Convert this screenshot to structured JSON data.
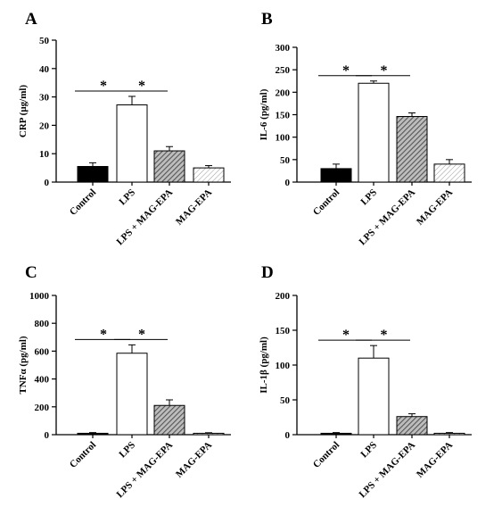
{
  "chart_data": [
    {
      "panel": "A",
      "type": "bar",
      "ylabel": "CRP (µg/ml)",
      "ylim": [
        0,
        50
      ],
      "yticks": [
        0,
        10,
        20,
        30,
        40,
        50
      ],
      "categories": [
        "Control",
        "LPS",
        "LPS + MAG-EPA",
        "MAG-EPA"
      ],
      "values": [
        5.5,
        27.2,
        11.0,
        5.0
      ],
      "errors": [
        1.3,
        3.0,
        1.5,
        0.8
      ],
      "fills": [
        "solid",
        "open",
        "dense-hatch",
        "light-hatch"
      ],
      "significance": [
        {
          "from": 0,
          "to": 1,
          "label": "*"
        },
        {
          "from": 1,
          "to": 2,
          "label": "*"
        }
      ]
    },
    {
      "panel": "B",
      "type": "bar",
      "ylabel": "IL-6 (pg/ml)",
      "ylim": [
        0,
        300
      ],
      "yticks": [
        0,
        50,
        100,
        150,
        200,
        250,
        300
      ],
      "categories": [
        "Control",
        "LPS",
        "LPS + MAG-EPA",
        "MAG-EPA"
      ],
      "values": [
        30,
        220,
        146,
        40
      ],
      "errors": [
        10,
        5,
        8,
        10
      ],
      "fills": [
        "solid",
        "open",
        "dense-hatch",
        "light-hatch"
      ],
      "significance": [
        {
          "from": 0,
          "to": 1,
          "label": "*"
        },
        {
          "from": 1,
          "to": 2,
          "label": "*"
        }
      ]
    },
    {
      "panel": "C",
      "type": "bar",
      "ylabel": "TNFα (pg/ml)",
      "ylim": [
        0,
        1000
      ],
      "yticks": [
        0,
        200,
        400,
        600,
        800,
        1000
      ],
      "categories": [
        "Control",
        "LPS",
        "LPS + MAG-EPA",
        "MAG-EPA"
      ],
      "values": [
        10,
        585,
        210,
        10
      ],
      "errors": [
        5,
        60,
        40,
        4
      ],
      "fills": [
        "solid",
        "open",
        "dense-hatch",
        "light-hatch"
      ],
      "significance": [
        {
          "from": 0,
          "to": 1,
          "label": "*"
        },
        {
          "from": 1,
          "to": 2,
          "label": "*"
        }
      ]
    },
    {
      "panel": "D",
      "type": "bar",
      "ylabel": "IL-1β (pg/ml)",
      "ylim": [
        0,
        200
      ],
      "yticks": [
        0,
        50,
        100,
        150,
        200
      ],
      "categories": [
        "Control",
        "LPS",
        "LPS + MAG-EPA",
        "MAG-EPA"
      ],
      "values": [
        2,
        110,
        26,
        2
      ],
      "errors": [
        1,
        18,
        4,
        1
      ],
      "fills": [
        "solid",
        "open",
        "dense-hatch",
        "light-hatch"
      ],
      "significance": [
        {
          "from": 0,
          "to": 1,
          "label": "*"
        },
        {
          "from": 1,
          "to": 2,
          "label": "*"
        }
      ]
    }
  ]
}
